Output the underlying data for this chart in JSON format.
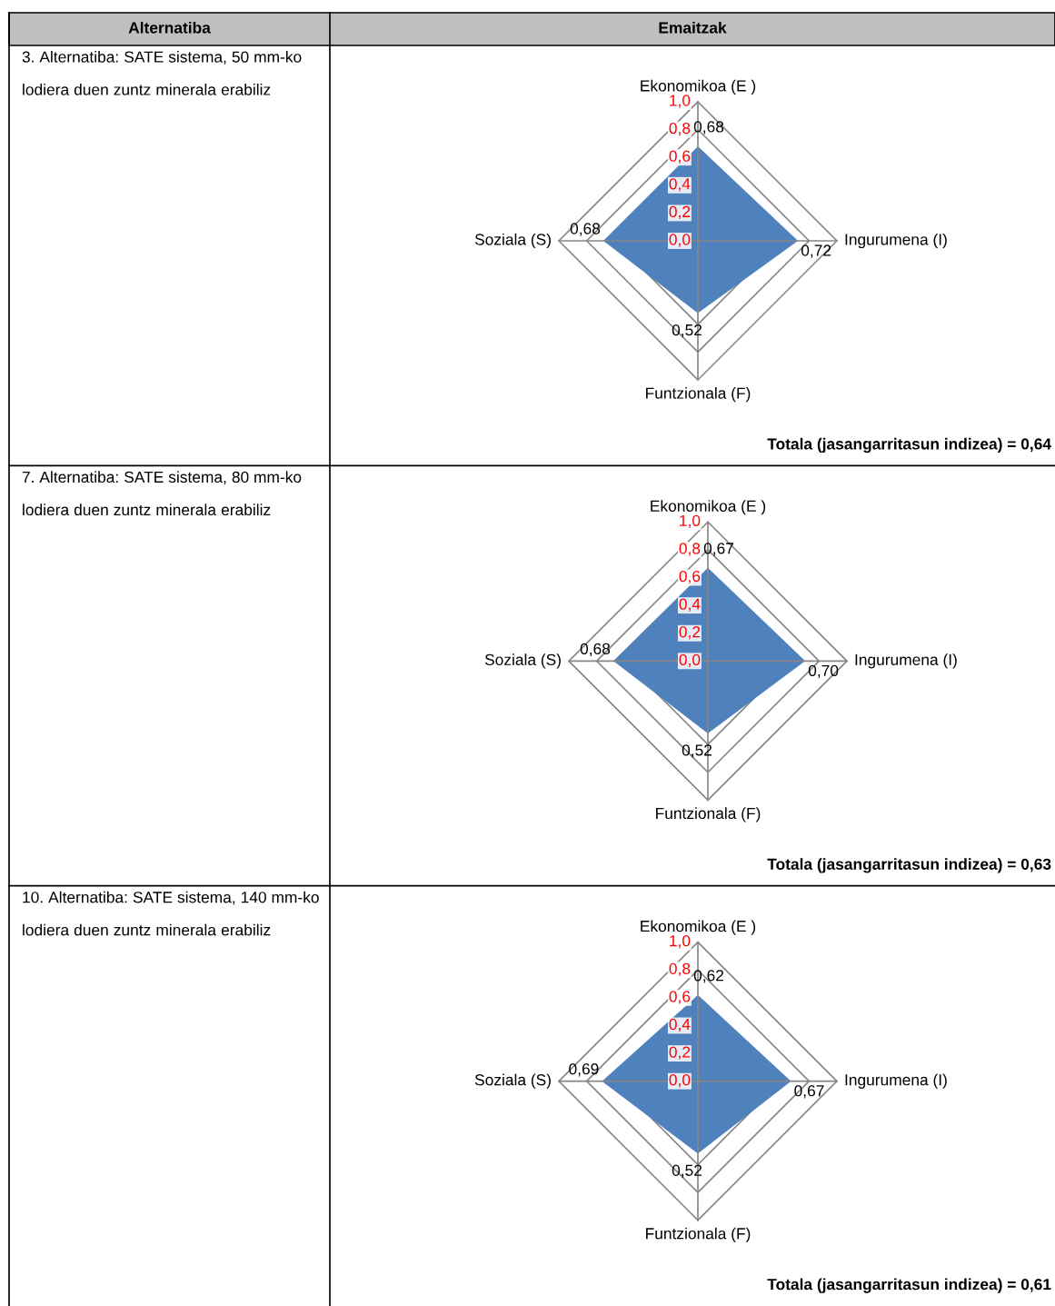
{
  "chart_data": [
    {
      "type": "radar",
      "subtitle": "3. Alternatiba: SATE sistema, 50 mm-ko lodiera duen zuntz minerala erabiliz",
      "categories": [
        "Ekonomikoa (E )",
        "Ingurumena (I)",
        "Funtzionala (F)",
        "Soziala (S)"
      ],
      "series": [
        {
          "color": "#4f81bd",
          "values": [
            0.68,
            0.72,
            0.52,
            0.68
          ],
          "value_labels": [
            "0,68",
            "0,72",
            "0,52",
            "0,68"
          ]
        }
      ],
      "ylim": [
        0,
        1
      ],
      "yticks": [
        {
          "value": 0,
          "label": "0,0"
        },
        {
          "value": 0.2,
          "label": "0,2"
        },
        {
          "value": 0.4,
          "label": "0,4"
        },
        {
          "value": 0.6,
          "label": "0,6"
        },
        {
          "value": 0.8,
          "label": "0,8"
        },
        {
          "value": 1,
          "label": "1,0"
        }
      ],
      "grid": true,
      "legend": false,
      "annotations": [
        "Alternatiba",
        "Emaitzak",
        "Totala (jasangarritasun indizea) = 0,64"
      ]
    },
    {
      "type": "radar",
      "subtitle": "7. Alternatiba: SATE sistema, 80 mm-ko lodiera duen zuntz minerala erabiliz",
      "categories": [
        "Ekonomikoa (E )",
        "Ingurumena (I)",
        "Funtzionala (F)",
        "Soziala (S)"
      ],
      "series": [
        {
          "color": "#4f81bd",
          "values": [
            0.67,
            0.7,
            0.52,
            0.68
          ],
          "value_labels": [
            "0,67",
            "0,70",
            "0,52",
            "0,68"
          ]
        }
      ],
      "ylim": [
        0,
        1
      ],
      "yticks": [
        {
          "value": 0,
          "label": "0,0"
        },
        {
          "value": 0.2,
          "label": "0,2"
        },
        {
          "value": 0.4,
          "label": "0,4"
        },
        {
          "value": 0.6,
          "label": "0,6"
        },
        {
          "value": 0.8,
          "label": "0,8"
        },
        {
          "value": 1,
          "label": "1,0"
        }
      ],
      "grid": true,
      "legend": false,
      "annotations": [
        "Totala (jasangarritasun indizea) = 0,63"
      ]
    },
    {
      "type": "radar",
      "subtitle": "10. Alternatiba: SATE sistema, 140 mm-ko lodiera duen zuntz minerala erabiliz",
      "categories": [
        "Ekonomikoa (E )",
        "Ingurumena (I)",
        "Funtzionala (F)",
        "Soziala (S)"
      ],
      "series": [
        {
          "color": "#4f81bd",
          "values": [
            0.62,
            0.67,
            0.52,
            0.69
          ],
          "value_labels": [
            "0,62",
            "0,67",
            "0,52",
            "0,69"
          ]
        }
      ],
      "ylim": [
        0,
        1
      ],
      "yticks": [
        {
          "value": 0,
          "label": "0,0"
        },
        {
          "value": 0.2,
          "label": "0,2"
        },
        {
          "value": 0.4,
          "label": "0,4"
        },
        {
          "value": 0.6,
          "label": "0,6"
        },
        {
          "value": 0.8,
          "label": "0,8"
        },
        {
          "value": 1,
          "label": "1,0"
        }
      ],
      "grid": true,
      "legend": false,
      "annotations": [
        "Totala (jasangarritasun indizea) = 0,61"
      ]
    }
  ]
}
